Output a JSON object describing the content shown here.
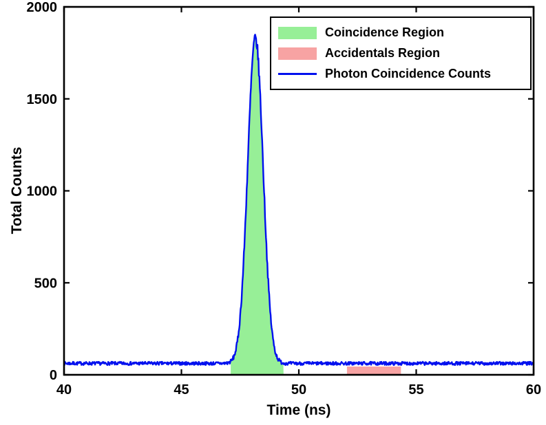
{
  "chart_data": {
    "type": "line",
    "title": "",
    "xlabel": "Time (ns)",
    "ylabel": "Total Counts",
    "xlim": [
      40,
      60
    ],
    "ylim": [
      0,
      2000
    ],
    "xticks": [
      40,
      45,
      50,
      55,
      60
    ],
    "yticks": [
      0,
      500,
      1000,
      1500,
      2000
    ],
    "grid": false,
    "legend_position": "top-right-inside",
    "legend": [
      {
        "label": "Coincidence Region",
        "swatch": "patch",
        "color": "#97EF97"
      },
      {
        "label": "Accidentals Region",
        "swatch": "patch",
        "color": "#F7A3A3"
      },
      {
        "label": "Photon Coincidence Counts",
        "swatch": "line",
        "color": "#0010EE"
      }
    ],
    "series": [
      {
        "name": "Photon Coincidence Counts",
        "color": "#0010EE",
        "line_width": 2.4,
        "observed": {
          "baseline_counts": 62,
          "peak_time_ns": 48.15,
          "peak_counts": 1840
        },
        "model": {
          "baseline": 62,
          "noise_amplitude": 9,
          "peak_center": 48.15,
          "peak_sigma": 0.33,
          "peak_amplitude": 1765,
          "x_start": 40,
          "x_end": 60,
          "x_step": 0.02
        }
      }
    ],
    "regions": [
      {
        "name": "Coincidence Region",
        "x_start": 47.1,
        "x_end": 49.35,
        "color": "#97EF97",
        "fill_mode": "under-curve"
      },
      {
        "name": "Accidentals Region",
        "x_start": 52.05,
        "x_end": 54.35,
        "color": "#F7A3A3",
        "fill_mode": "rect",
        "height": 45
      }
    ],
    "axis": {
      "line_color": "#000000",
      "line_width": 2.6,
      "tick_length": 8,
      "tick_direction": "in",
      "font_weight": "bold"
    }
  }
}
